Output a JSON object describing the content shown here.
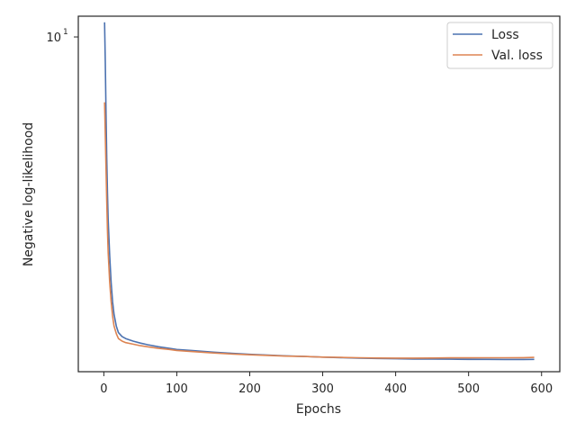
{
  "chart_data": {
    "type": "line",
    "title": "",
    "xlabel": "Epochs",
    "ylabel": "Negative log-likelihood",
    "xlim": [
      -35,
      625
    ],
    "ylim": [
      1.39,
      11.3
    ],
    "yscale": "log",
    "x_ticks": [
      0,
      100,
      200,
      300,
      400,
      500,
      600
    ],
    "y_ticks": [
      {
        "value": 10,
        "label": "10",
        "exponent": "1"
      }
    ],
    "grid": false,
    "legend": {
      "position": "top-right"
    },
    "series": [
      {
        "name": "Loss",
        "color": "#4c72b0",
        "x": [
          1,
          2,
          3,
          4,
          5,
          6,
          8,
          10,
          12,
          14,
          17,
          20,
          25,
          30,
          40,
          50,
          60,
          75,
          90,
          100,
          120,
          150,
          175,
          200,
          225,
          250,
          275,
          300,
          325,
          350,
          375,
          400,
          425,
          450,
          475,
          500,
          525,
          550,
          575,
          590
        ],
        "y": [
          10.9,
          8.6,
          6.4,
          4.9,
          4.0,
          3.4,
          2.75,
          2.35,
          2.1,
          1.95,
          1.82,
          1.75,
          1.71,
          1.69,
          1.665,
          1.645,
          1.63,
          1.61,
          1.595,
          1.585,
          1.575,
          1.56,
          1.55,
          1.54,
          1.533,
          1.526,
          1.52,
          1.515,
          1.51,
          1.506,
          1.503,
          1.5,
          1.498,
          1.497,
          1.496,
          1.495,
          1.495,
          1.494,
          1.494,
          1.495
        ]
      },
      {
        "name": "Val. loss",
        "color": "#dd8452",
        "x": [
          1,
          2,
          3,
          4,
          5,
          6,
          8,
          10,
          12,
          14,
          17,
          20,
          25,
          30,
          40,
          50,
          60,
          75,
          90,
          100,
          120,
          150,
          175,
          200,
          225,
          250,
          275,
          300,
          325,
          350,
          375,
          400,
          425,
          450,
          475,
          500,
          525,
          550,
          575,
          590
        ],
        "y": [
          6.8,
          5.6,
          4.6,
          3.8,
          3.2,
          2.8,
          2.35,
          2.1,
          1.93,
          1.82,
          1.74,
          1.69,
          1.665,
          1.65,
          1.635,
          1.62,
          1.61,
          1.595,
          1.585,
          1.575,
          1.565,
          1.552,
          1.543,
          1.536,
          1.53,
          1.524,
          1.52,
          1.515,
          1.512,
          1.509,
          1.507,
          1.506,
          1.506,
          1.507,
          1.508,
          1.508,
          1.509,
          1.509,
          1.51,
          1.512
        ]
      }
    ]
  }
}
